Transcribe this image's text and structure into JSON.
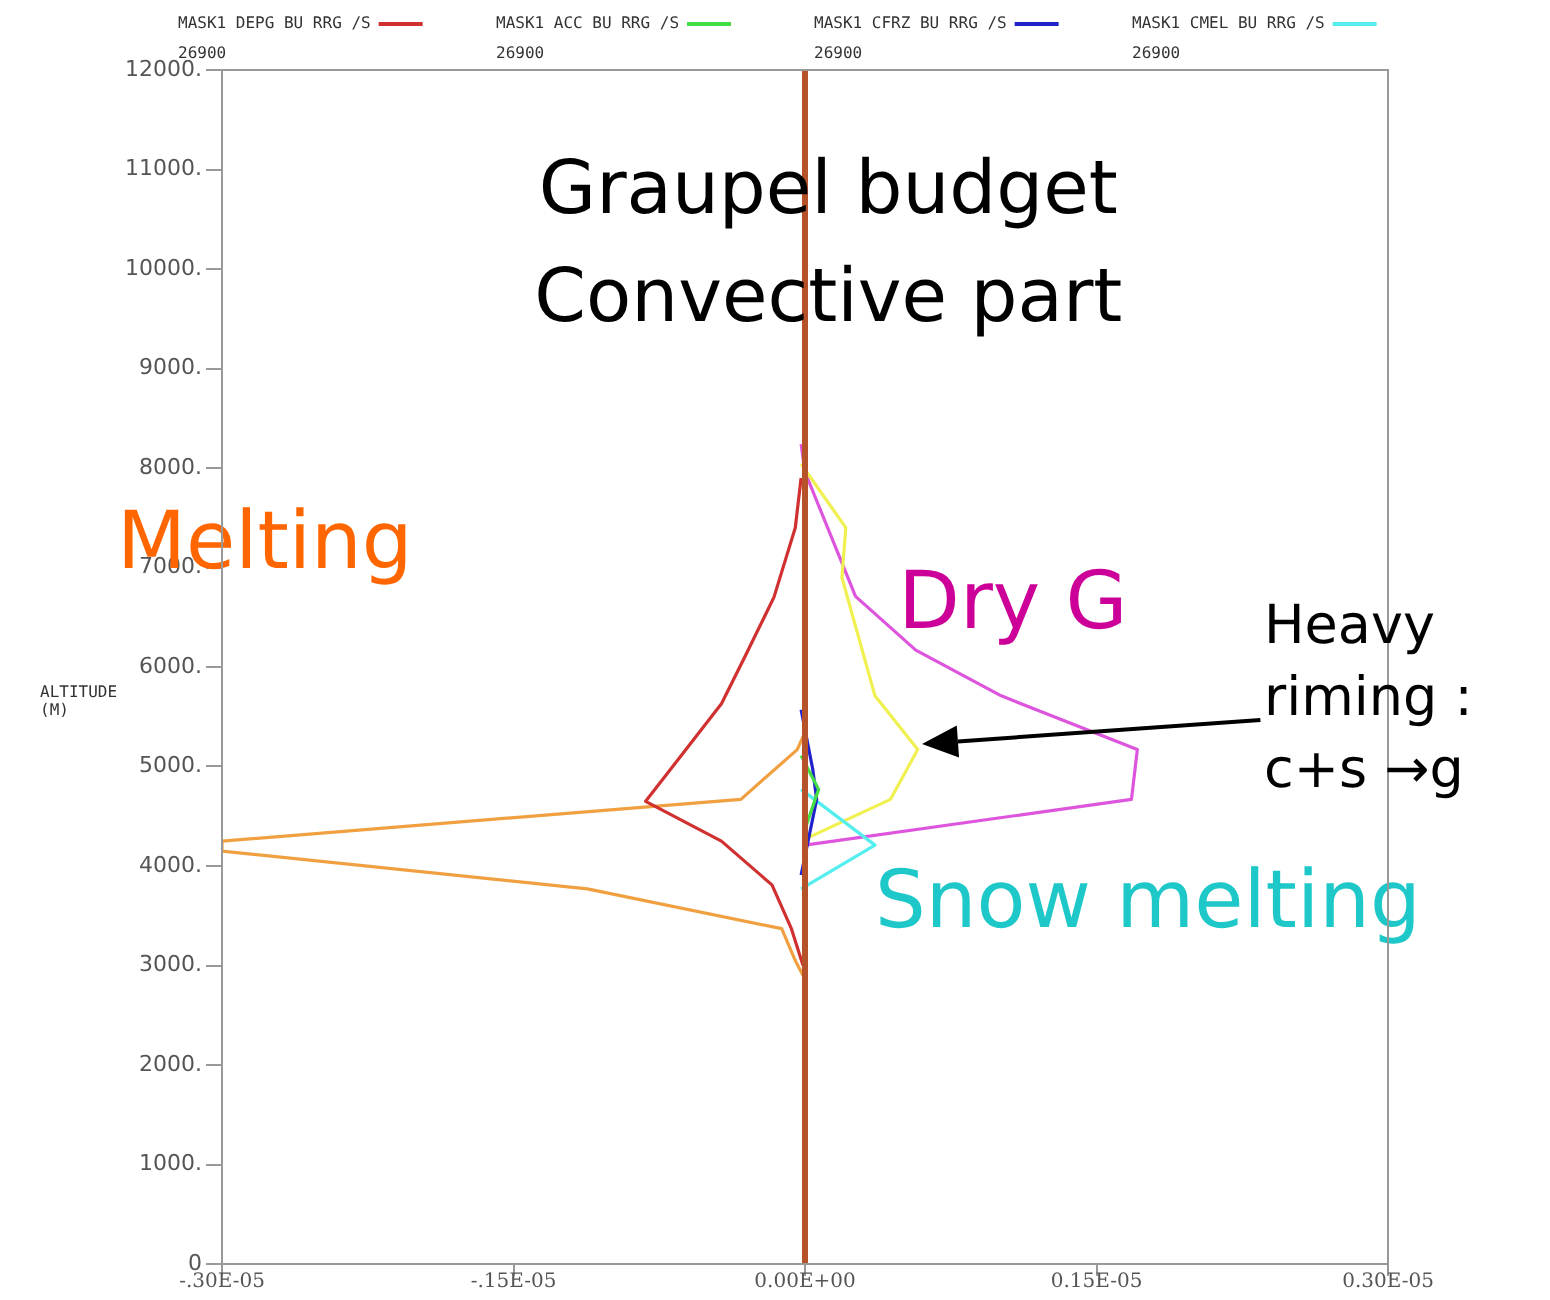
{
  "chart_data": {
    "type": "line",
    "title": "Graupel budget\nConvective part",
    "ylabel": "ALTITUDE\n(M)",
    "xlim": [
      -3e-06,
      3e-06
    ],
    "xticks": [
      {
        "value": -3e-06,
        "label": "-.30E-05"
      },
      {
        "value": -1.5e-06,
        "label": "-.15E-05"
      },
      {
        "value": 0,
        "label": "0.00E+00"
      },
      {
        "value": 1.5e-06,
        "label": "0.15E-05"
      },
      {
        "value": 3e-06,
        "label": "0.30E-05"
      }
    ],
    "ylim": [
      0,
      12000
    ],
    "yticks": [
      0,
      {
        "value": 1000,
        "label": "1000."
      },
      {
        "value": 2000,
        "label": "2000."
      },
      {
        "value": 3000,
        "label": "3000."
      },
      {
        "value": 4000,
        "label": "4000."
      },
      {
        "value": 5000,
        "label": "5000."
      },
      {
        "value": 6000,
        "label": "6000."
      },
      {
        "value": 7000,
        "label": "7000."
      },
      {
        "value": 8000,
        "label": "8000."
      },
      {
        "value": 9000,
        "label": "9000."
      },
      {
        "value": 10000,
        "label": "10000."
      },
      {
        "value": 11000,
        "label": "11000."
      },
      {
        "value": 12000,
        "label": "12000."
      }
    ],
    "grid": false,
    "legend": "top",
    "marker": "none",
    "line_style": "solid",
    "ref_lines": [
      {
        "axis": "x",
        "value": 0,
        "color": "#b5522a"
      }
    ],
    "annotations": [
      "26900",
      "26900",
      "26900",
      "26900",
      "Melting",
      "Dry G",
      "Snow melting",
      "Heavy\nriming :\nc+s →g"
    ],
    "series": [
      {
        "name": "MASK1 DEPG BU RRG /S",
        "color": "#d03030",
        "x": [
          -2e-08,
          -5e-08,
          -1.6e-07,
          -3.1e-07,
          -4.3e-07,
          -8.2e-07,
          -4.3e-07,
          -1.7e-07,
          -7e-08,
          -1e-08
        ],
        "values": [
          7900,
          7400,
          6700,
          6100,
          5630,
          4650,
          4250,
          3810,
          3370,
          3000
        ]
      },
      {
        "name": "MASK1 ACC BU RRG /S",
        "color": "#44dd44",
        "x": [
          -2e-08,
          7e-08,
          0
        ],
        "values": [
          5110,
          4770,
          4370
        ]
      },
      {
        "name": "MASK1 CFRZ BU RRG /S",
        "color": "#2222cc",
        "x": [
          -2e-08,
          4e-08,
          6e-08,
          -2e-08
        ],
        "values": [
          5570,
          4970,
          4670,
          3910
        ]
      },
      {
        "name": "MASK1 CMEL BU RRG /S",
        "color": "#55eeee",
        "x": [
          -2e-08,
          3.6e-07,
          -2e-08
        ],
        "values": [
          4770,
          4210,
          3770
        ]
      },
      {
        "color": "#f0a040",
        "x": [
          -1e-08,
          -4e-08,
          -3.3e-07,
          -3e-06,
          -3e-06,
          -1.12e-06,
          -1.2e-07,
          -5e-08,
          -1e-08
        ],
        "values": [
          5300,
          5170,
          4670,
          4250,
          4150,
          3770,
          3370,
          3050,
          2900
        ]
      },
      {
        "color": "#f0f050",
        "x": [
          -2e-08,
          2.1e-07,
          1.9e-07,
          3.6e-07,
          5.8e-07,
          4.4e-07,
          0
        ],
        "values": [
          8040,
          7400,
          6900,
          5710,
          5170,
          4670,
          4270
        ]
      },
      {
        "color": "#dd55dd",
        "x": [
          -2e-08,
          0,
          2.6e-07,
          5.7e-07,
          1.01e-06,
          1.71e-06,
          1.68e-06,
          0
        ],
        "values": [
          8240,
          7960,
          6710,
          6170,
          5710,
          5170,
          4670,
          4210
        ]
      }
    ]
  }
}
